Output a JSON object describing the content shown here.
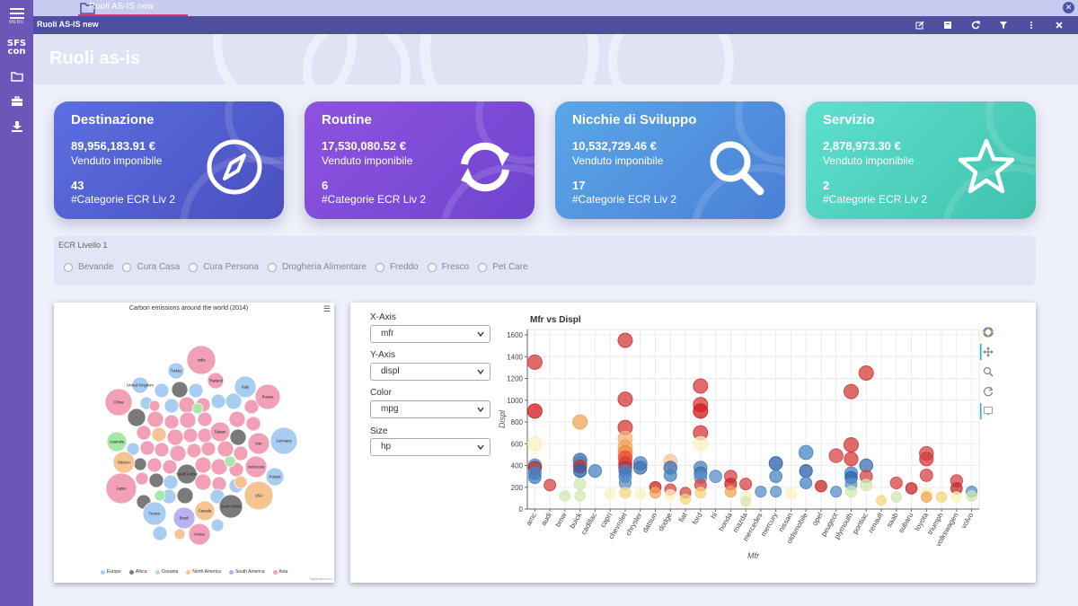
{
  "rail": {
    "menu_label": "MENU",
    "logo_top": "SFS",
    "logo_bottom": "con"
  },
  "tabs": [
    {
      "label": "Ruoli AS-IS new",
      "active": true
    }
  ],
  "window_title": "Ruoli AS-IS new",
  "page_title": "Ruoli as-is",
  "cards": [
    {
      "title": "Destinazione",
      "amount": "89,956,183.91 €",
      "amount_label": "Venduto imponibile",
      "count": "43",
      "count_label": "#Categorie ECR Liv 2",
      "icon": "compass-icon",
      "color_from": "#5b6fe0",
      "color_to": "#4a4fbf"
    },
    {
      "title": "Routine",
      "amount": "17,530,080.52 €",
      "amount_label": "Venduto imponibile",
      "count": "6",
      "count_label": "#Categorie ECR Liv 2",
      "icon": "refresh-icon",
      "color_from": "#8e52e0",
      "color_to": "#6f45cf"
    },
    {
      "title": "Nicchie di Sviluppo",
      "amount": "10,532,729.46 €",
      "amount_label": "Venduto imponibile",
      "count": "17",
      "count_label": "#Categorie ECR Liv 2",
      "icon": "search-icon",
      "color_from": "#5aa7e8",
      "color_to": "#4b7fd6"
    },
    {
      "title": "Servizio",
      "amount": "2,878,973.30 €",
      "amount_label": "Venduto imponibile",
      "count": "2",
      "count_label": "#Categorie ECR Liv 2",
      "icon": "star-icon",
      "color_from": "#5fe0cf",
      "color_to": "#3fc2ad"
    }
  ],
  "filter": {
    "label": "ECR Livello 1",
    "options": [
      "Bevande",
      "Cura Casa",
      "Cura Persona",
      "Drogheria Alimentare",
      "Freddo",
      "Fresco",
      "Pet Care"
    ]
  },
  "bubble_chart": {
    "title": "Carbon emissions around the world (2014)",
    "credits": "Highcharts.com",
    "legend": [
      {
        "name": "Europe",
        "color": "#a8cdf0"
      },
      {
        "name": "Africa",
        "color": "#7a7a7a"
      },
      {
        "name": "Oceania",
        "color": "#a6e8a8"
      },
      {
        "name": "North America",
        "color": "#f6c493"
      },
      {
        "name": "South America",
        "color": "#b9b2f0"
      },
      {
        "name": "Asia",
        "color": "#f2a0b8"
      }
    ],
    "labels": [
      "India",
      "Turkey",
      "United Kingdom",
      "Thailand",
      "Italy",
      "Russia",
      "China",
      "Taiwan",
      "Iran",
      "Germany",
      "Australia",
      "Mexico",
      "Saudi Arabia",
      "Indonesia",
      "Poland",
      "Japan",
      "USA",
      "France",
      "South Africa",
      "Canada",
      "Brazil",
      "Korea"
    ]
  },
  "controls": [
    {
      "label": "X-Axis",
      "value": "mfr"
    },
    {
      "label": "Y-Axis",
      "value": "displ"
    },
    {
      "label": "Color",
      "value": "mpg"
    },
    {
      "label": "Size",
      "value": "hp"
    }
  ],
  "chart_data": {
    "type": "scatter",
    "title": "Mfr vs Displ",
    "xlabel": "Mfr",
    "ylabel": "Displ",
    "ylim": [
      0,
      1650
    ],
    "yticks": [
      0,
      200,
      400,
      600,
      800,
      1000,
      1200,
      1400,
      1600
    ],
    "categories": [
      "amc",
      "audi",
      "bmw",
      "buick",
      "cadillac",
      "capri",
      "chevrolet",
      "chrysler",
      "datsun",
      "dodge",
      "fiat",
      "ford",
      "hi",
      "honda",
      "mazda",
      "mercedes",
      "mercury",
      "nissan",
      "oldsmobile",
      "opel",
      "peugeot",
      "plymouth",
      "pontiac",
      "renault",
      "saab",
      "subaru",
      "toyota",
      "triumph",
      "volkswagen",
      "volvo"
    ],
    "points": [
      {
        "x": "amc",
        "y": 1350,
        "color": "#d43a3a"
      },
      {
        "x": "amc",
        "y": 900,
        "color": "#d01818"
      },
      {
        "x": "amc",
        "y": 600,
        "color": "#fbf2c0"
      },
      {
        "x": "amc",
        "y": 400,
        "color": "#5a8fc7"
      },
      {
        "x": "amc",
        "y": 380,
        "color": "#b23030"
      },
      {
        "x": "amc",
        "y": 330,
        "color": "#4a84c2"
      },
      {
        "x": "amc",
        "y": 290,
        "color": "#3f7dc0"
      },
      {
        "x": "audi",
        "y": 220,
        "color": "#d64545"
      },
      {
        "x": "bmw",
        "y": 120,
        "color": "#cfe8b0"
      },
      {
        "x": "buick",
        "y": 800,
        "color": "#f2a65a"
      },
      {
        "x": "buick",
        "y": 450,
        "color": "#3e6fb0"
      },
      {
        "x": "buick",
        "y": 420,
        "color": "#4a84c2"
      },
      {
        "x": "buick",
        "y": 390,
        "color": "#c23434"
      },
      {
        "x": "buick",
        "y": 350,
        "color": "#2a61a8"
      },
      {
        "x": "buick",
        "y": 230,
        "color": "#cfe8b0"
      },
      {
        "x": "buick",
        "y": 120,
        "color": "#cfe8b0"
      },
      {
        "x": "cadillac",
        "y": 350,
        "color": "#4a84c2"
      },
      {
        "x": "capri",
        "y": 140,
        "color": "#fbf2c0"
      },
      {
        "x": "chevrolet",
        "y": 1550,
        "color": "#d43a3a"
      },
      {
        "x": "chevrolet",
        "y": 1010,
        "color": "#d43a3a"
      },
      {
        "x": "chevrolet",
        "y": 750,
        "color": "#d43a3a"
      },
      {
        "x": "chevrolet",
        "y": 650,
        "color": "#f6b17a"
      },
      {
        "x": "chevrolet",
        "y": 570,
        "color": "#f2a65a"
      },
      {
        "x": "chevrolet",
        "y": 520,
        "color": "#f08a40"
      },
      {
        "x": "chevrolet",
        "y": 470,
        "color": "#e94a3a"
      },
      {
        "x": "chevrolet",
        "y": 420,
        "color": "#d43a3a"
      },
      {
        "x": "chevrolet",
        "y": 380,
        "color": "#b23030"
      },
      {
        "x": "chevrolet",
        "y": 350,
        "color": "#4a84c2"
      },
      {
        "x": "chevrolet",
        "y": 300,
        "color": "#3f7dc0"
      },
      {
        "x": "chevrolet",
        "y": 240,
        "color": "#5a8fc7"
      },
      {
        "x": "chevrolet",
        "y": 150,
        "color": "#f5d580"
      },
      {
        "x": "chrysler",
        "y": 420,
        "color": "#4a84c2"
      },
      {
        "x": "chrysler",
        "y": 380,
        "color": "#3e6fb0"
      },
      {
        "x": "chrysler",
        "y": 140,
        "color": "#fbf2c0"
      },
      {
        "x": "datsun",
        "y": 200,
        "color": "#c62828"
      },
      {
        "x": "datsun",
        "y": 150,
        "color": "#f2a65a"
      },
      {
        "x": "dodge",
        "y": 440,
        "color": "#f6c493"
      },
      {
        "x": "dodge",
        "y": 380,
        "color": "#3e6fb0"
      },
      {
        "x": "dodge",
        "y": 310,
        "color": "#4a84c2"
      },
      {
        "x": "dodge",
        "y": 180,
        "color": "#d64545"
      },
      {
        "x": "dodge",
        "y": 130,
        "color": "#fbf2c0"
      },
      {
        "x": "fiat",
        "y": 150,
        "color": "#d64545"
      },
      {
        "x": "fiat",
        "y": 90,
        "color": "#f5d580"
      },
      {
        "x": "ford",
        "y": 1130,
        "color": "#d43a3a"
      },
      {
        "x": "ford",
        "y": 960,
        "color": "#d43a3a"
      },
      {
        "x": "ford",
        "y": 900,
        "color": "#d01818"
      },
      {
        "x": "ford",
        "y": 700,
        "color": "#d43a3a"
      },
      {
        "x": "ford",
        "y": 600,
        "color": "#fbf2c0"
      },
      {
        "x": "ford",
        "y": 380,
        "color": "#4a84c2"
      },
      {
        "x": "ford",
        "y": 330,
        "color": "#3e6fb0"
      },
      {
        "x": "ford",
        "y": 290,
        "color": "#5a8fc7"
      },
      {
        "x": "ford",
        "y": 220,
        "color": "#d64545"
      },
      {
        "x": "ford",
        "y": 150,
        "color": "#f5d580"
      },
      {
        "x": "hi",
        "y": 300,
        "color": "#5a8fc7"
      },
      {
        "x": "honda",
        "y": 300,
        "color": "#d64545"
      },
      {
        "x": "honda",
        "y": 230,
        "color": "#c62828"
      },
      {
        "x": "honda",
        "y": 160,
        "color": "#f2a65a"
      },
      {
        "x": "mazda",
        "y": 230,
        "color": "#d64545"
      },
      {
        "x": "mazda",
        "y": 120,
        "color": "#fbf2c0"
      },
      {
        "x": "mazda",
        "y": 70,
        "color": "#cfe8b0"
      },
      {
        "x": "mercedes",
        "y": 160,
        "color": "#5a8fc7"
      },
      {
        "x": "mercury",
        "y": 420,
        "color": "#2a61a8"
      },
      {
        "x": "mercury",
        "y": 300,
        "color": "#4a84c2"
      },
      {
        "x": "mercury",
        "y": 160,
        "color": "#5a8fc7"
      },
      {
        "x": "nissan",
        "y": 140,
        "color": "#fbf2c0"
      },
      {
        "x": "oldsmobile",
        "y": 520,
        "color": "#4a84c2"
      },
      {
        "x": "oldsmobile",
        "y": 350,
        "color": "#2a61a8"
      },
      {
        "x": "oldsmobile",
        "y": 240,
        "color": "#4a84c2"
      },
      {
        "x": "opel",
        "y": 210,
        "color": "#c62828"
      },
      {
        "x": "peugeot",
        "y": 490,
        "color": "#d64545"
      },
      {
        "x": "peugeot",
        "y": 160,
        "color": "#5a8fc7"
      },
      {
        "x": "plymouth",
        "y": 1080,
        "color": "#d43a3a"
      },
      {
        "x": "plymouth",
        "y": 590,
        "color": "#d43a3a"
      },
      {
        "x": "plymouth",
        "y": 460,
        "color": "#d43a3a"
      },
      {
        "x": "plymouth",
        "y": 330,
        "color": "#4a84c2"
      },
      {
        "x": "plymouth",
        "y": 290,
        "color": "#2a61a8"
      },
      {
        "x": "plymouth",
        "y": 230,
        "color": "#5a8fc7"
      },
      {
        "x": "plymouth",
        "y": 160,
        "color": "#cfe8b0"
      },
      {
        "x": "pontiac",
        "y": 1250,
        "color": "#d43a3a"
      },
      {
        "x": "pontiac",
        "y": 400,
        "color": "#3e6fb0"
      },
      {
        "x": "pontiac",
        "y": 300,
        "color": "#d64545"
      },
      {
        "x": "pontiac",
        "y": 220,
        "color": "#cfe8b0"
      },
      {
        "x": "renault",
        "y": 80,
        "color": "#f5d580"
      },
      {
        "x": "saab",
        "y": 240,
        "color": "#d64545"
      },
      {
        "x": "saab",
        "y": 110,
        "color": "#cfe8b0"
      },
      {
        "x": "subaru",
        "y": 190,
        "color": "#c62828"
      },
      {
        "x": "toyota",
        "y": 510,
        "color": "#d64545"
      },
      {
        "x": "toyota",
        "y": 460,
        "color": "#d43a3a"
      },
      {
        "x": "toyota",
        "y": 310,
        "color": "#d64545"
      },
      {
        "x": "toyota",
        "y": 150,
        "color": "#fbf2c0"
      },
      {
        "x": "toyota",
        "y": 110,
        "color": "#f2a65a"
      },
      {
        "x": "triumph",
        "y": 110,
        "color": "#f5d580"
      },
      {
        "x": "volkswagen",
        "y": 260,
        "color": "#d64545"
      },
      {
        "x": "volkswagen",
        "y": 190,
        "color": "#c62828"
      },
      {
        "x": "volkswagen",
        "y": 110,
        "color": "#fbf2c0"
      },
      {
        "x": "volvo",
        "y": 160,
        "color": "#5a8fc7"
      },
      {
        "x": "volvo",
        "y": 120,
        "color": "#cfe8b0"
      }
    ]
  }
}
